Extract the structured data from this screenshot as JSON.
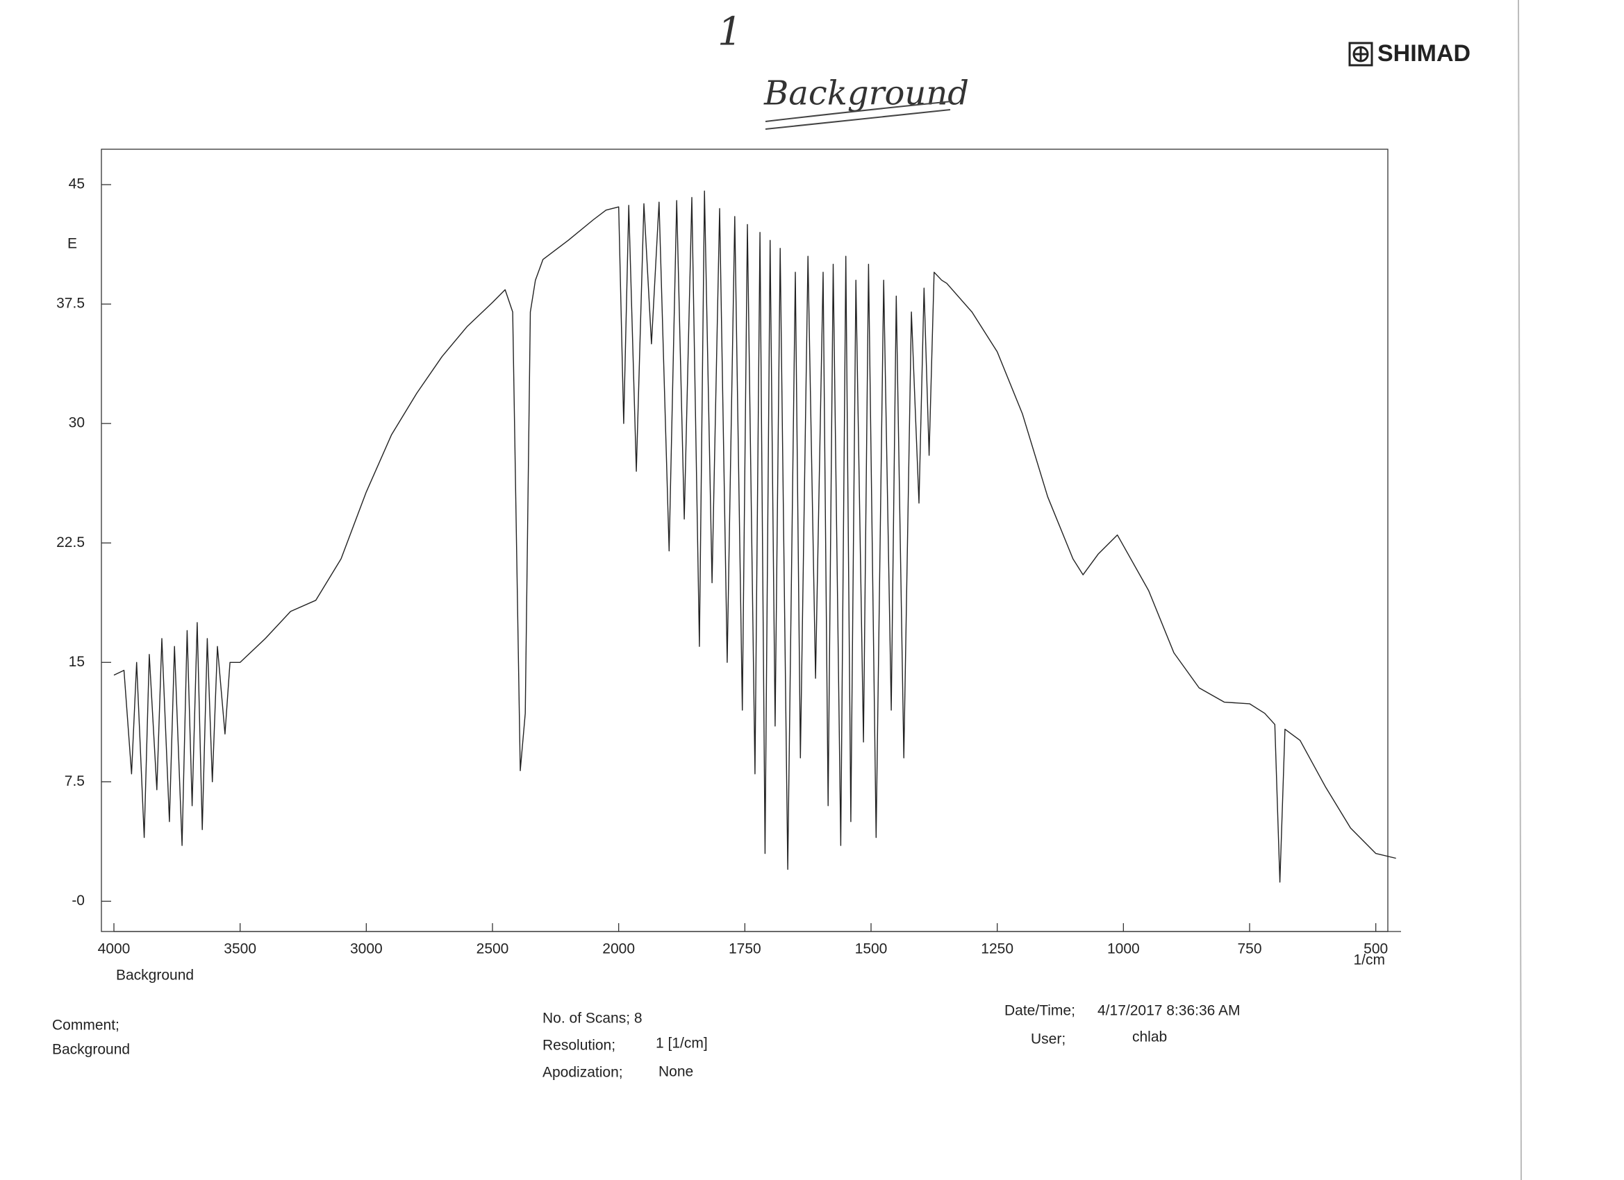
{
  "header": {
    "page_mark": "1",
    "handwritten_title": "Background",
    "logo": "SHIMAD"
  },
  "chart_data": {
    "type": "line",
    "color": "#222222",
    "y_label": "E",
    "sample_label": "Background",
    "x_unit": "1/cm",
    "xlim": [
      4000,
      450
    ],
    "ylim": [
      -1.9,
      46.7
    ],
    "xticks": [
      4000,
      3500,
      3000,
      2500,
      2000,
      1750,
      1500,
      1250,
      1000,
      750,
      500
    ],
    "yticks": [
      45,
      37.5,
      30,
      22.5,
      15,
      7.5,
      {
        "value": 0,
        "label": "-0"
      }
    ],
    "x": [
      4000,
      3960,
      3930,
      3910,
      3880,
      3860,
      3830,
      3810,
      3780,
      3760,
      3730,
      3710,
      3690,
      3670,
      3650,
      3630,
      3610,
      3590,
      3560,
      3540,
      3500,
      3400,
      3300,
      3200,
      3100,
      3000,
      2900,
      2800,
      2700,
      2600,
      2500,
      2450,
      2420,
      2390,
      2370,
      2350,
      2330,
      2300,
      2200,
      2100,
      2050,
      2000,
      1990,
      1980,
      1965,
      1950,
      1935,
      1920,
      1900,
      1885,
      1870,
      1855,
      1840,
      1830,
      1815,
      1800,
      1785,
      1770,
      1755,
      1745,
      1730,
      1720,
      1710,
      1700,
      1690,
      1680,
      1665,
      1650,
      1640,
      1625,
      1610,
      1595,
      1585,
      1575,
      1560,
      1550,
      1540,
      1530,
      1515,
      1505,
      1490,
      1475,
      1460,
      1450,
      1435,
      1420,
      1405,
      1395,
      1385,
      1375,
      1360,
      1350,
      1300,
      1250,
      1200,
      1150,
      1100,
      1080,
      1050,
      1012,
      950,
      900,
      850,
      800,
      750,
      720,
      700,
      690,
      680,
      650,
      600,
      550,
      500,
      460
    ],
    "values": [
      14.2,
      14.5,
      8.0,
      15.0,
      4.0,
      15.5,
      7.0,
      16.5,
      5.0,
      16.0,
      3.5,
      17.0,
      6.0,
      17.5,
      4.5,
      16.5,
      7.5,
      16.0,
      10.5,
      15.0,
      15.0,
      16.5,
      18.2,
      18.9,
      21.5,
      25.7,
      29.3,
      31.9,
      34.2,
      36.1,
      37.6,
      38.4,
      37.0,
      8.2,
      11.8,
      37.0,
      39.0,
      40.3,
      41.5,
      42.8,
      43.4,
      43.6,
      30,
      43.7,
      27,
      43.8,
      35,
      43.9,
      22,
      44,
      24,
      44.2,
      16,
      44.6,
      20,
      43.5,
      15,
      43,
      12,
      42.5,
      8,
      42,
      3,
      41.5,
      11,
      41,
      2,
      39.5,
      9,
      40.5,
      14,
      39.5,
      6,
      40,
      3.5,
      40.5,
      5,
      39,
      10,
      40,
      4,
      39,
      12,
      38,
      9,
      37,
      25,
      38.5,
      28,
      39.5,
      39,
      38.8,
      37,
      34.5,
      30.6,
      25.4,
      21.5,
      20.5,
      21.8,
      23,
      19.5,
      15.6,
      13.4,
      12.5,
      12.4,
      11.8,
      11.1,
      1.2,
      10.8,
      10.1,
      7.2,
      4.6,
      3,
      2.7
    ]
  },
  "info": {
    "comment_key": "Comment;",
    "comment_value": "Background",
    "scans": "No. of Scans; 8",
    "resolution_key": "Resolution;",
    "resolution_value": "1 [1/cm]",
    "apodization_key": "Apodization;",
    "apodization_value": "None",
    "datetime_key": "Date/Time;",
    "datetime_value": "4/17/2017 8:36:36 AM",
    "user_key": "User;",
    "user_value": "chlab"
  }
}
